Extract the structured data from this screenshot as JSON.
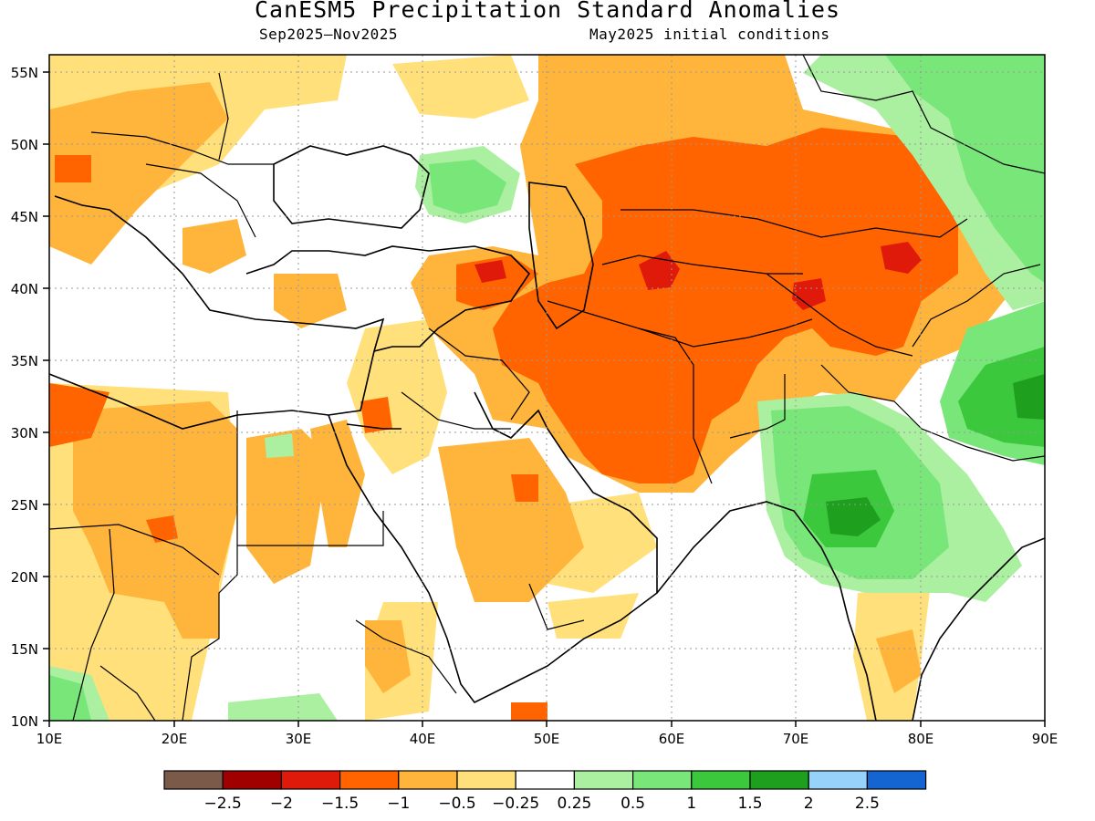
{
  "title": "CanESM5 Precipitation Standard Anomalies",
  "subtitle_left": "Sep2025–Nov2025",
  "subtitle_right": "May2025 initial conditions",
  "lat_labels": [
    "10N",
    "15N",
    "20N",
    "25N",
    "30N",
    "35N",
    "40N",
    "45N",
    "50N",
    "55N"
  ],
  "lon_labels": [
    "10E",
    "20E",
    "30E",
    "40E",
    "50E",
    "60E",
    "70E",
    "80E",
    "90E"
  ],
  "legend": {
    "labels": [
      "−2.5",
      "−2",
      "−1.5",
      "−1",
      "−0.5",
      "−0.25",
      "0.25",
      "0.5",
      "1",
      "1.5",
      "2",
      "2.5"
    ],
    "colors": [
      "#7b5a4a",
      "#a00000",
      "#e01a0a",
      "#ff6400",
      "#ffb43c",
      "#ffe07a",
      "#ffffff",
      "#aaf0a0",
      "#78e678",
      "#3cc83c",
      "#1ea01e",
      "#96d2fa",
      "#1464d2"
    ]
  },
  "palette": {
    "yellow": "#ffe07a",
    "orange": "#ffb43c",
    "dark_orange": "#ff6400",
    "red": "#e01a0a",
    "light_green": "#aaf0a0",
    "green": "#78e678",
    "mid_green": "#3cc83c",
    "dark_green": "#1ea01e"
  }
}
